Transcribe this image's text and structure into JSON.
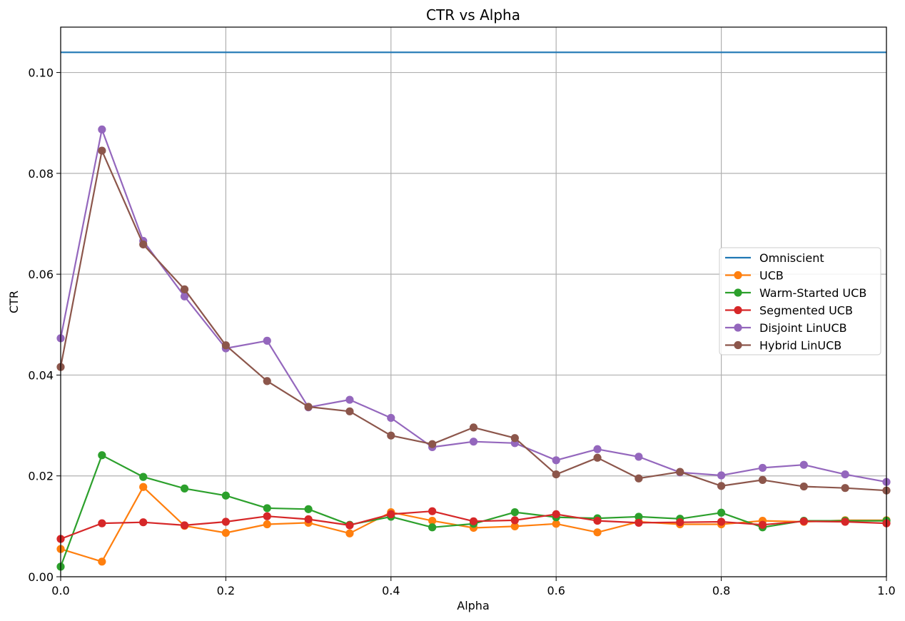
{
  "chart_data": {
    "type": "line",
    "title": "CTR vs Alpha",
    "xlabel": "Alpha",
    "ylabel": "CTR",
    "xlim": [
      0,
      1.0
    ],
    "ylim": [
      0,
      0.109
    ],
    "xticks": [
      0.0,
      0.2,
      0.4,
      0.6,
      0.8,
      1.0
    ],
    "xtick_labels": [
      "0.0",
      "0.2",
      "0.4",
      "0.6",
      "0.8",
      "1.0"
    ],
    "yticks": [
      0.0,
      0.02,
      0.04,
      0.06,
      0.08,
      0.1
    ],
    "ytick_labels": [
      "0.00",
      "0.02",
      "0.04",
      "0.06",
      "0.08",
      "0.10"
    ],
    "grid": true,
    "legend_position": "center-right",
    "x": [
      0.0,
      0.05,
      0.1,
      0.15,
      0.2,
      0.25,
      0.3,
      0.35,
      0.4,
      0.45,
      0.5,
      0.55,
      0.6,
      0.65,
      0.7,
      0.75,
      0.8,
      0.85,
      0.9,
      0.95,
      1.0
    ],
    "series": [
      {
        "name": "Omniscient",
        "color": "#1f77b4",
        "markers": false,
        "values": [
          0.104,
          0.104,
          0.104,
          0.104,
          0.104,
          0.104,
          0.104,
          0.104,
          0.104,
          0.104,
          0.104,
          0.104,
          0.104,
          0.104,
          0.104,
          0.104,
          0.104,
          0.104,
          0.104,
          0.104,
          0.104
        ]
      },
      {
        "name": "UCB",
        "color": "#ff7f0e",
        "markers": true,
        "values": [
          0.0055,
          0.003,
          0.0178,
          0.0101,
          0.0087,
          0.0104,
          0.0107,
          0.0086,
          0.0128,
          0.0111,
          0.0097,
          0.01,
          0.0105,
          0.0088,
          0.0109,
          0.0104,
          0.0104,
          0.0111,
          0.0109,
          0.0112,
          0.0112
        ]
      },
      {
        "name": "Warm-Started UCB",
        "color": "#2ca02c",
        "markers": true,
        "values": [
          0.002,
          0.0241,
          0.0198,
          0.0175,
          0.0161,
          0.0136,
          0.0134,
          0.0103,
          0.0119,
          0.0098,
          0.0105,
          0.0128,
          0.0118,
          0.0116,
          0.0119,
          0.0115,
          0.0127,
          0.0098,
          0.0111,
          0.0111,
          0.0111
        ]
      },
      {
        "name": "Segmented UCB",
        "color": "#d62728",
        "markers": true,
        "values": [
          0.0075,
          0.0106,
          0.0108,
          0.0102,
          0.0109,
          0.012,
          0.0114,
          0.0102,
          0.0124,
          0.013,
          0.011,
          0.0112,
          0.0124,
          0.0111,
          0.0107,
          0.0108,
          0.0109,
          0.0103,
          0.011,
          0.0109,
          0.0106
        ]
      },
      {
        "name": "Disjoint LinUCB",
        "color": "#9467bd",
        "markers": true,
        "values": [
          0.0473,
          0.0887,
          0.0666,
          0.0556,
          0.0453,
          0.0468,
          0.0336,
          0.0351,
          0.0315,
          0.0257,
          0.0268,
          0.0265,
          0.0231,
          0.0253,
          0.0238,
          0.0207,
          0.0201,
          0.0216,
          0.0222,
          0.0203,
          0.0188
        ]
      },
      {
        "name": "Hybrid LinUCB",
        "color": "#8c564b",
        "markers": true,
        "values": [
          0.0416,
          0.0845,
          0.0659,
          0.057,
          0.0459,
          0.0388,
          0.0337,
          0.0328,
          0.028,
          0.0263,
          0.0296,
          0.0275,
          0.0203,
          0.0236,
          0.0195,
          0.0208,
          0.018,
          0.0192,
          0.0179,
          0.0176,
          0.0171
        ]
      }
    ]
  }
}
